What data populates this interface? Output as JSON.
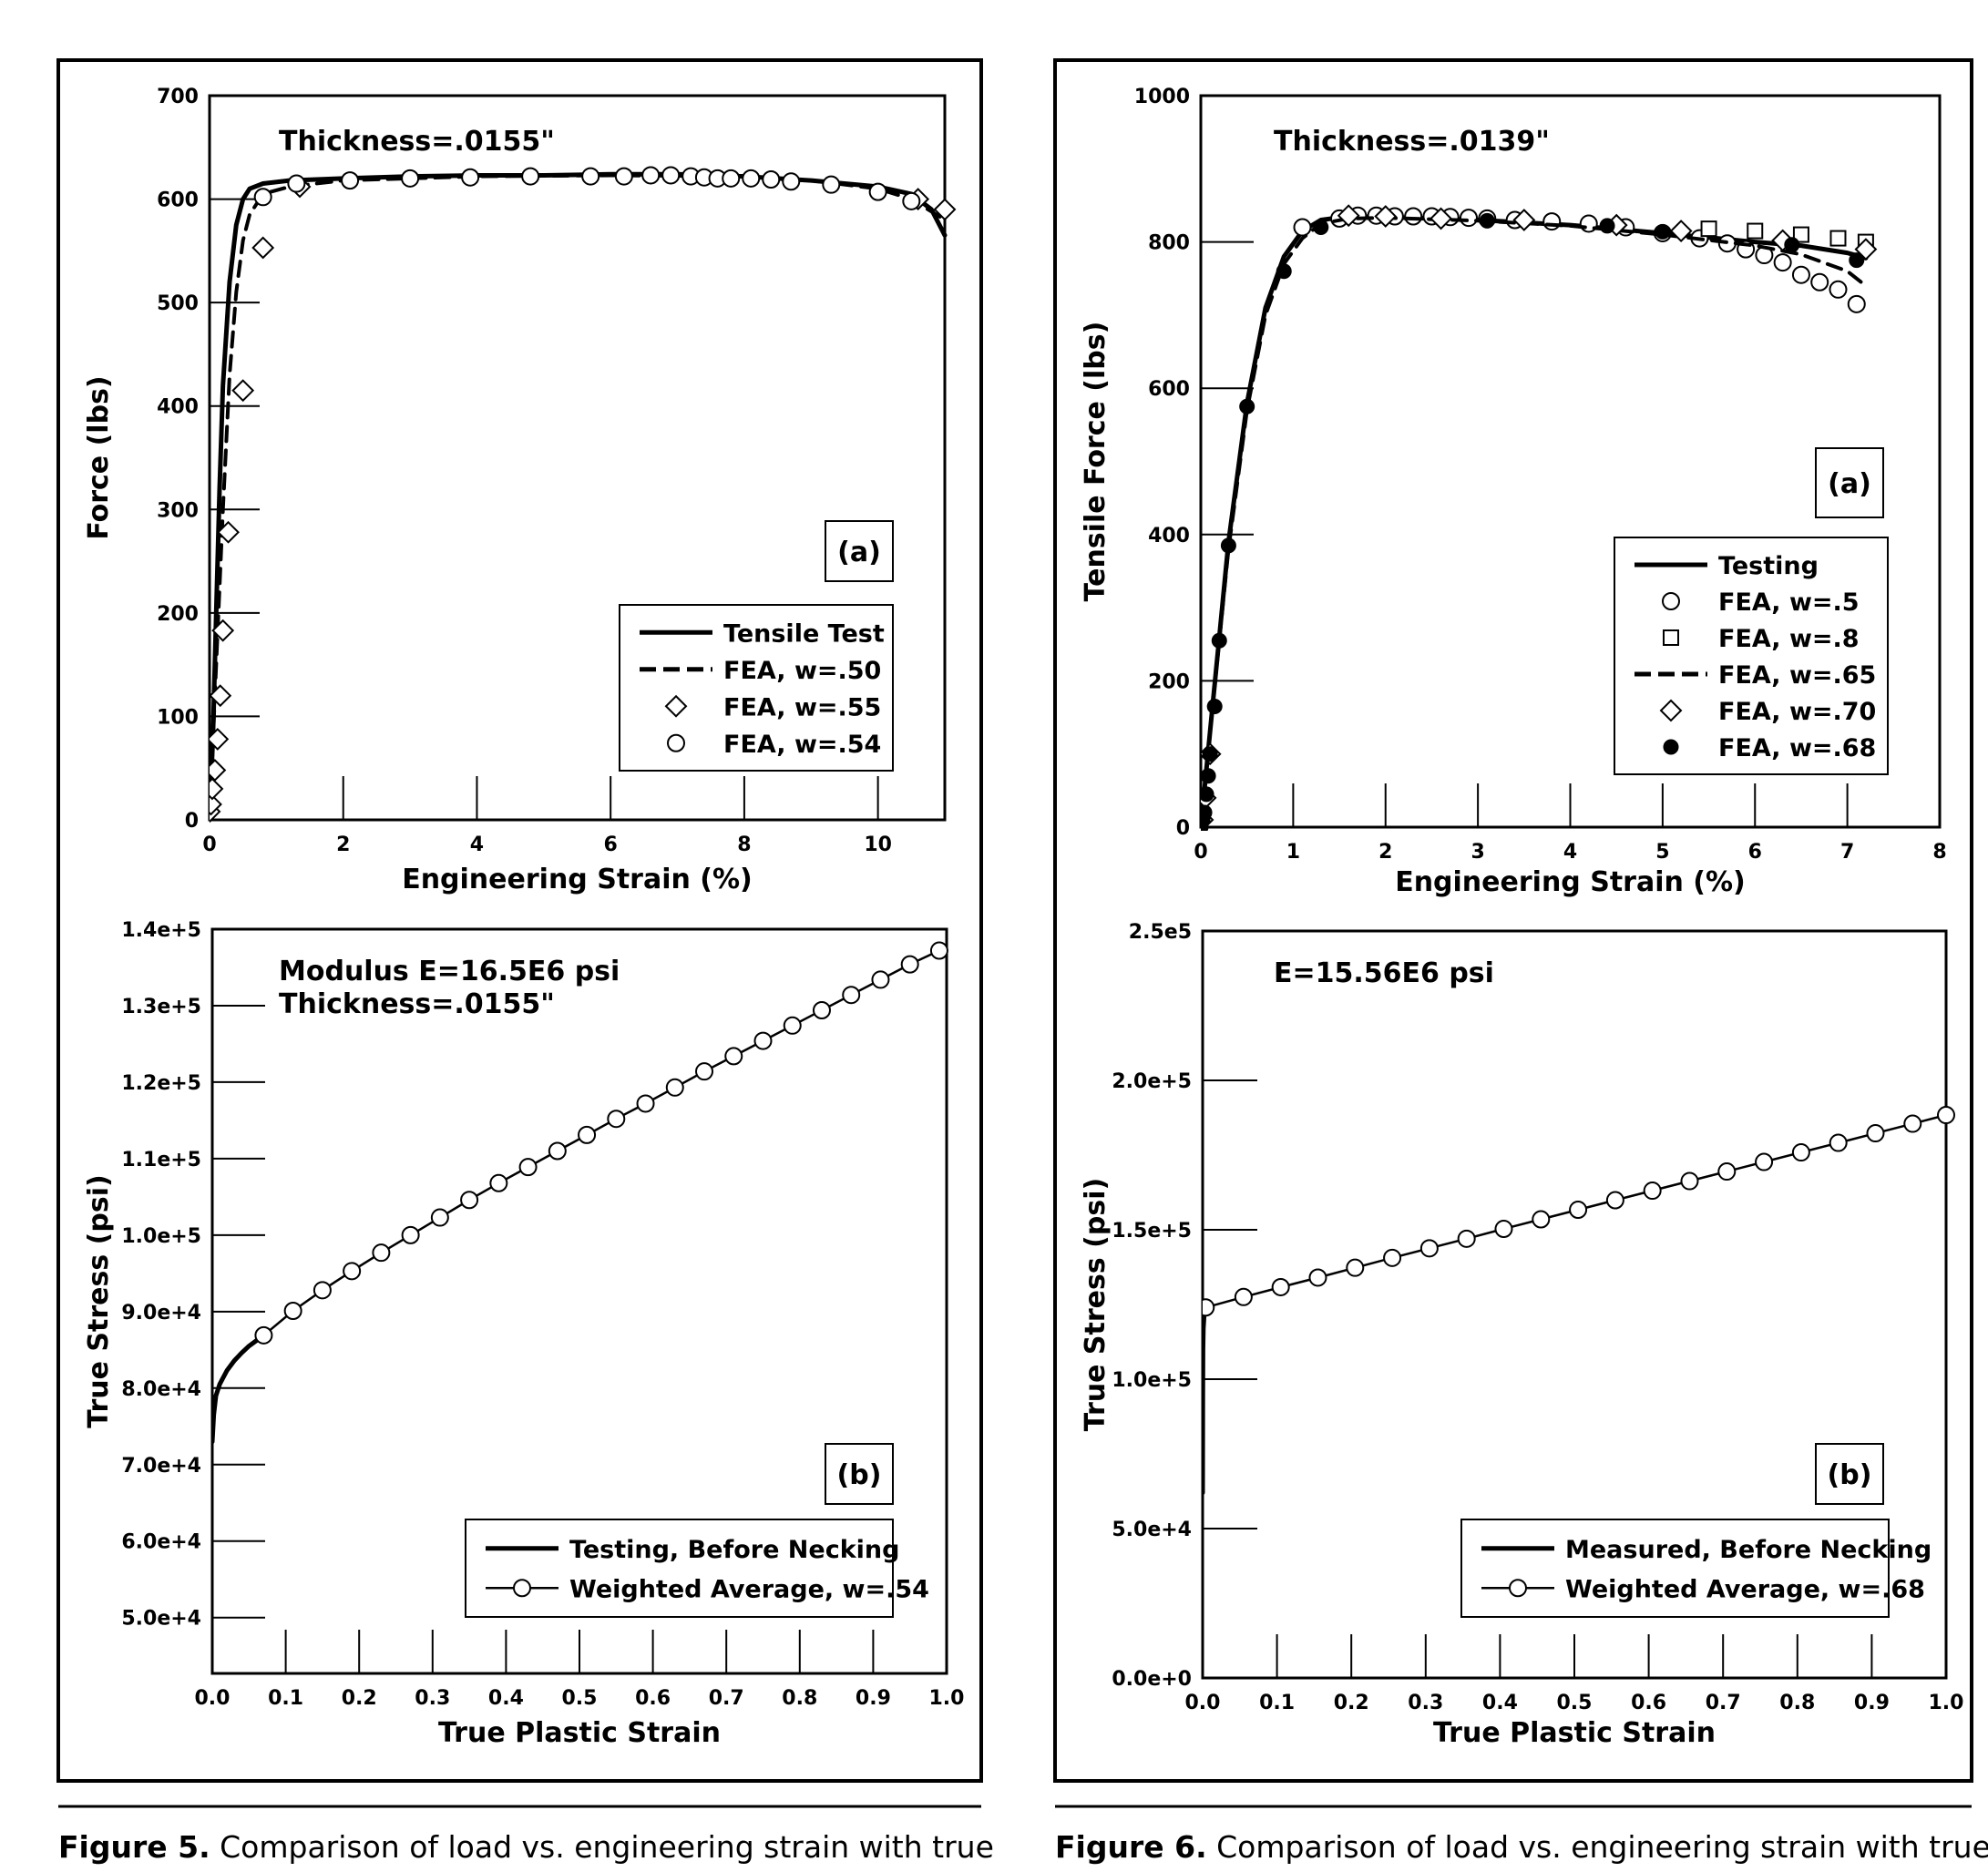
{
  "captions": {
    "left_label": "Figure 5.",
    "left_text": "Comparison of load vs. engineering strain with true",
    "right_label": "Figure 6.",
    "right_text": "Comparison of load vs. engineering strain with true"
  },
  "chart_data": [
    {
      "id": "fig5a",
      "type": "line",
      "panel_tag": "(a)",
      "annotation": "Thickness=.0155\"",
      "xlabel": "Engineering Strain (%)",
      "ylabel": "Force (lbs)",
      "xlim": [
        0,
        11
      ],
      "ylim": [
        0,
        700
      ],
      "xticks": [
        0,
        2,
        4,
        6,
        8,
        10
      ],
      "xtick_labels": [
        "0",
        "2",
        "4",
        "6",
        "8",
        "10"
      ],
      "yticks": [
        0,
        100,
        200,
        300,
        400,
        500,
        600,
        700
      ],
      "ytick_labels": [
        "0",
        "100",
        "200",
        "300",
        "400",
        "500",
        "600",
        "700"
      ],
      "legend_position": "lower-right",
      "series": [
        {
          "name": "Tensile Test",
          "style": "solid",
          "x": [
            0,
            0.05,
            0.1,
            0.15,
            0.2,
            0.3,
            0.4,
            0.5,
            0.6,
            0.8,
            1.2,
            2,
            3,
            4,
            5,
            6,
            7,
            8,
            9,
            10,
            10.5,
            10.8,
            11
          ],
          "y": [
            0,
            80,
            200,
            320,
            420,
            520,
            575,
            600,
            610,
            615,
            618,
            620,
            622,
            623,
            623,
            624,
            624,
            622,
            618,
            612,
            605,
            590,
            565
          ]
        },
        {
          "name": "FEA, w=.50",
          "style": "dashed",
          "x": [
            0,
            0.1,
            0.2,
            0.3,
            0.4,
            0.5,
            0.6,
            0.8,
            1.2,
            2,
            4,
            6,
            8,
            9,
            10,
            10.5,
            11
          ],
          "y": [
            0,
            150,
            300,
            430,
            510,
            560,
            585,
            605,
            612,
            618,
            622,
            623,
            622,
            618,
            610,
            600,
            580
          ]
        },
        {
          "name": "FEA, w=.55",
          "style": "diamond",
          "x": [
            0,
            0.02,
            0.04,
            0.08,
            0.12,
            0.16,
            0.2,
            0.28,
            0.5,
            0.8,
            1.35,
            10.6,
            11.0
          ],
          "y": [
            8,
            15,
            30,
            48,
            78,
            120,
            183,
            278,
            415,
            553,
            612,
            600,
            590
          ]
        },
        {
          "name": "FEA, w=.54",
          "style": "circle",
          "x": [
            0.8,
            1.3,
            2.1,
            3.0,
            3.9,
            4.8,
            5.7,
            6.2,
            6.6,
            6.9,
            7.2,
            7.4,
            7.6,
            7.8,
            8.1,
            8.4,
            8.7,
            9.3,
            10.0,
            10.5
          ],
          "y": [
            602,
            615,
            618,
            620,
            621,
            622,
            622,
            622,
            623,
            623,
            622,
            621,
            620,
            620,
            620,
            619,
            617,
            614,
            607,
            598
          ]
        }
      ]
    },
    {
      "id": "fig5b",
      "type": "line",
      "panel_tag": "(b)",
      "annotation": [
        "Modulus E=16.5E6 psi",
        "Thickness=.0155\""
      ],
      "xlabel": "True Plastic Strain",
      "ylabel": "True Stress (psi)",
      "xlim": [
        0,
        1.0
      ],
      "ylim": [
        42700,
        140000
      ],
      "xticks": [
        0,
        0.1,
        0.2,
        0.3,
        0.4,
        0.5,
        0.6,
        0.7,
        0.8,
        0.9,
        1.0
      ],
      "xtick_labels": [
        "0.0",
        "0.1",
        "0.2",
        "0.3",
        "0.4",
        "0.5",
        "0.6",
        "0.7",
        "0.8",
        "0.9",
        "1.0"
      ],
      "yticks": [
        50000,
        60000,
        70000,
        80000,
        90000,
        100000,
        110000,
        120000,
        130000,
        140000
      ],
      "ytick_labels": [
        "5.0e+4",
        "6.0e+4",
        "7.0e+4",
        "8.0e+4",
        "9.0e+4",
        "1.0e+5",
        "1.1e+5",
        "1.2e+5",
        "1.3e+5",
        "1.4e+5"
      ],
      "legend_position": "lower-right",
      "series": [
        {
          "name": "Testing, Before Necking",
          "style": "solid",
          "x": [
            0,
            0.002,
            0.005,
            0.01,
            0.02,
            0.03,
            0.04,
            0.05,
            0.06,
            0.07
          ],
          "y": [
            73000,
            76500,
            79000,
            80500,
            82300,
            83600,
            84600,
            85500,
            86200,
            86900
          ]
        },
        {
          "name": "Weighted Average, w=.54",
          "style": "line-circle",
          "x": [
            0.07,
            0.11,
            0.15,
            0.19,
            0.23,
            0.27,
            0.31,
            0.35,
            0.39,
            0.43,
            0.47,
            0.51,
            0.55,
            0.59,
            0.63,
            0.67,
            0.71,
            0.75,
            0.79,
            0.83,
            0.87,
            0.91,
            0.95,
            0.99
          ],
          "y": [
            86900,
            90100,
            92800,
            95300,
            97700,
            100000,
            102300,
            104600,
            106800,
            108900,
            111000,
            113100,
            115200,
            117200,
            119300,
            121400,
            123400,
            125400,
            127400,
            129400,
            131400,
            133400,
            135400,
            137200
          ]
        }
      ]
    },
    {
      "id": "fig6a",
      "type": "line",
      "panel_tag": "(a)",
      "annotation": "Thickness=.0139\"",
      "xlabel": "Engineering Strain (%)",
      "ylabel": "Tensile Force (lbs)",
      "xlim": [
        0,
        8
      ],
      "ylim": [
        0,
        1000
      ],
      "xticks": [
        0,
        1,
        2,
        3,
        4,
        5,
        6,
        7,
        8
      ],
      "xtick_labels": [
        "0",
        "1",
        "2",
        "3",
        "4",
        "5",
        "6",
        "7",
        "8"
      ],
      "yticks": [
        0,
        200,
        400,
        600,
        800,
        1000
      ],
      "ytick_labels": [
        "0",
        "200",
        "400",
        "600",
        "800",
        "1000"
      ],
      "legend_position": "lower-right",
      "series": [
        {
          "name": "Testing",
          "style": "solid",
          "x": [
            0,
            0.1,
            0.2,
            0.3,
            0.5,
            0.7,
            0.9,
            1.1,
            1.3,
            1.6,
            2,
            3,
            4,
            5,
            6,
            6.5,
            7,
            7.2
          ],
          "y": [
            0,
            130,
            260,
            390,
            580,
            710,
            780,
            815,
            830,
            835,
            834,
            830,
            823,
            812,
            800,
            795,
            785,
            778
          ]
        },
        {
          "name": "FEA, w=.5",
          "style": "circle",
          "x": [
            1.1,
            1.5,
            1.7,
            1.9,
            2.1,
            2.3,
            2.5,
            2.7,
            2.9,
            3.1,
            3.4,
            3.8,
            4.2,
            4.6,
            5.0,
            5.4,
            5.7,
            5.9,
            6.1,
            6.3,
            6.5,
            6.7,
            6.9,
            7.1
          ],
          "y": [
            820,
            832,
            836,
            836,
            835,
            835,
            835,
            834,
            833,
            832,
            830,
            828,
            825,
            820,
            812,
            805,
            798,
            790,
            782,
            772,
            755,
            745,
            735,
            715
          ]
        },
        {
          "name": "FEA, w=.8",
          "style": "square",
          "x": [
            5.5,
            6.0,
            6.5,
            6.9,
            7.2
          ],
          "y": [
            818,
            815,
            810,
            805,
            800
          ]
        },
        {
          "name": "FEA, w=.65",
          "style": "dashed",
          "x": [
            0,
            0.1,
            0.2,
            0.3,
            0.5,
            0.7,
            0.9,
            1.1,
            1.3,
            1.6,
            2,
            3,
            4,
            5,
            6,
            6.5,
            7,
            7.2
          ],
          "y": [
            0,
            130,
            255,
            380,
            570,
            700,
            770,
            805,
            825,
            832,
            833,
            829,
            822,
            810,
            795,
            783,
            760,
            740
          ]
        },
        {
          "name": "FEA, w=.70",
          "style": "diamond",
          "x": [
            0.02,
            0.05,
            0.1,
            1.6,
            2.0,
            2.6,
            3.5,
            4.5,
            5.2,
            6.3,
            7.2
          ],
          "y": [
            10,
            40,
            100,
            836,
            835,
            832,
            830,
            823,
            815,
            802,
            790
          ]
        },
        {
          "name": "FEA, w=.68",
          "style": "filled-circle",
          "x": [
            0,
            0.02,
            0.04,
            0.06,
            0.08,
            0.1,
            0.15,
            0.2,
            0.3,
            0.5,
            0.9,
            1.3,
            3.1,
            4.4,
            5.0,
            6.4,
            7.1
          ],
          "y": [
            0,
            10,
            20,
            45,
            70,
            100,
            165,
            255,
            385,
            575,
            760,
            820,
            829,
            822,
            814,
            796,
            775
          ]
        }
      ]
    },
    {
      "id": "fig6b",
      "type": "line",
      "panel_tag": "(b)",
      "annotation": "E=15.56E6 psi",
      "xlabel": "True Plastic Strain",
      "ylabel": "True Stress (psi)",
      "xlim": [
        0,
        1.0
      ],
      "ylim": [
        0,
        250000
      ],
      "xticks": [
        0,
        0.1,
        0.2,
        0.3,
        0.4,
        0.5,
        0.6,
        0.7,
        0.8,
        0.9,
        1.0
      ],
      "xtick_labels": [
        "0.0",
        "0.1",
        "0.2",
        "0.3",
        "0.4",
        "0.5",
        "0.6",
        "0.7",
        "0.8",
        "0.9",
        "1.0"
      ],
      "yticks": [
        0,
        50000,
        100000,
        150000,
        200000,
        250000
      ],
      "ytick_labels": [
        "0.0e+0",
        "5.0e+4",
        "1.0e+5",
        "1.5e+5",
        "2.0e+5",
        "2.5e5"
      ],
      "legend_position": "lower-right",
      "series": [
        {
          "name": "Measured, Before Necking",
          "style": "solid",
          "x": [
            0,
            0.0002,
            0.0005,
            0.001,
            0.002,
            0.003,
            0.004
          ],
          "y": [
            62000,
            95000,
            110000,
            117000,
            121000,
            123000,
            124000
          ]
        },
        {
          "name": "Weighted Average, w=.68",
          "style": "line-circle",
          "x": [
            0.004,
            0.055,
            0.105,
            0.155,
            0.205,
            0.255,
            0.305,
            0.355,
            0.405,
            0.455,
            0.505,
            0.555,
            0.605,
            0.655,
            0.705,
            0.755,
            0.805,
            0.855,
            0.905,
            0.955,
            1.0
          ],
          "y": [
            124000,
            127500,
            130800,
            134000,
            137300,
            140600,
            143800,
            147000,
            150300,
            153500,
            156700,
            159900,
            163100,
            166300,
            169500,
            172700,
            175900,
            179100,
            182300,
            185500,
            188400
          ]
        }
      ]
    }
  ]
}
